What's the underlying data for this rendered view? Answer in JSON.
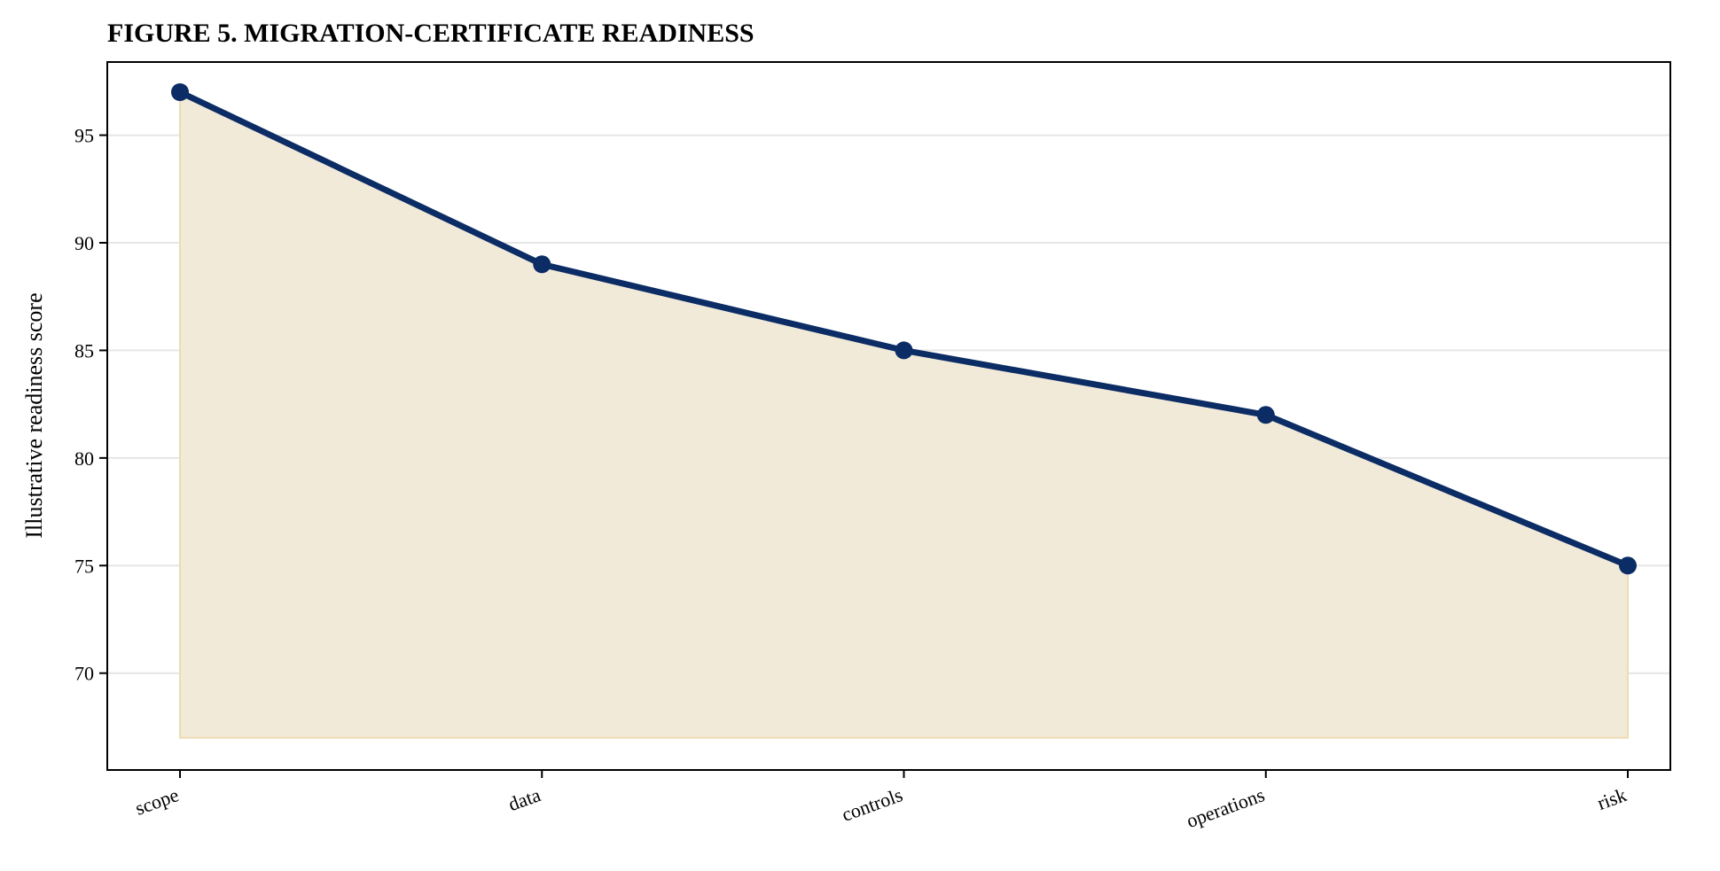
{
  "chart_data": {
    "type": "area",
    "title": "FIGURE 5. MIGRATION-CERTIFICATE READINESS",
    "xlabel": "",
    "ylabel": "Illustrative readiness score",
    "categories": [
      "scope",
      "data",
      "controls",
      "operations",
      "risk"
    ],
    "series": [
      {
        "values": [
          97,
          89,
          85,
          82,
          75
        ]
      }
    ],
    "area_baseline": 67,
    "ylim": [
      65.5,
      98.4
    ],
    "yticks": [
      70,
      75,
      80,
      85,
      90,
      95
    ],
    "grid": "y",
    "legend": "none",
    "colors": {
      "line": "#0b2c64",
      "fill": "#f2ead9",
      "fill_edge": "#ecdcb4",
      "grid": "#e6e6e6"
    }
  }
}
